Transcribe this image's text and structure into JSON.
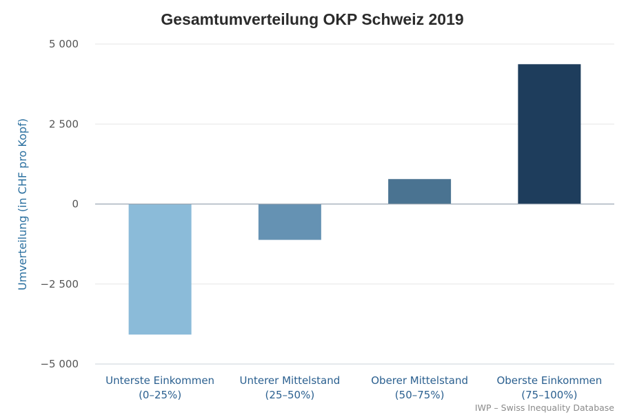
{
  "chart_data": {
    "type": "bar",
    "title": "Gesamtumverteilung OKP Schweiz 2019",
    "ylabel": "Umverteilung (in CHF pro Kopf)",
    "xlabel": "",
    "categories": [
      [
        "Unterste Einkommen",
        "(0–25%)"
      ],
      [
        "Unterer Mittelstand",
        "(25–50%)"
      ],
      [
        "Oberer Mittelstand",
        "(50–75%)"
      ],
      [
        "Oberste Einkommen",
        "(75–100%)"
      ]
    ],
    "values": [
      -4080,
      -1120,
      780,
      4370
    ],
    "colors": [
      "#8bbbd9",
      "#6592b3",
      "#4a7391",
      "#1e3d5c"
    ],
    "ylim": [
      -5000,
      5000
    ],
    "yticks": [
      5000,
      2500,
      0,
      -2500,
      -5000
    ],
    "ytick_labels": [
      "5 000",
      "2 500",
      "0",
      "−2 500",
      "−5 000"
    ],
    "grid": true,
    "legend": "none",
    "credit": "IWP – Swiss Inequality Database"
  }
}
